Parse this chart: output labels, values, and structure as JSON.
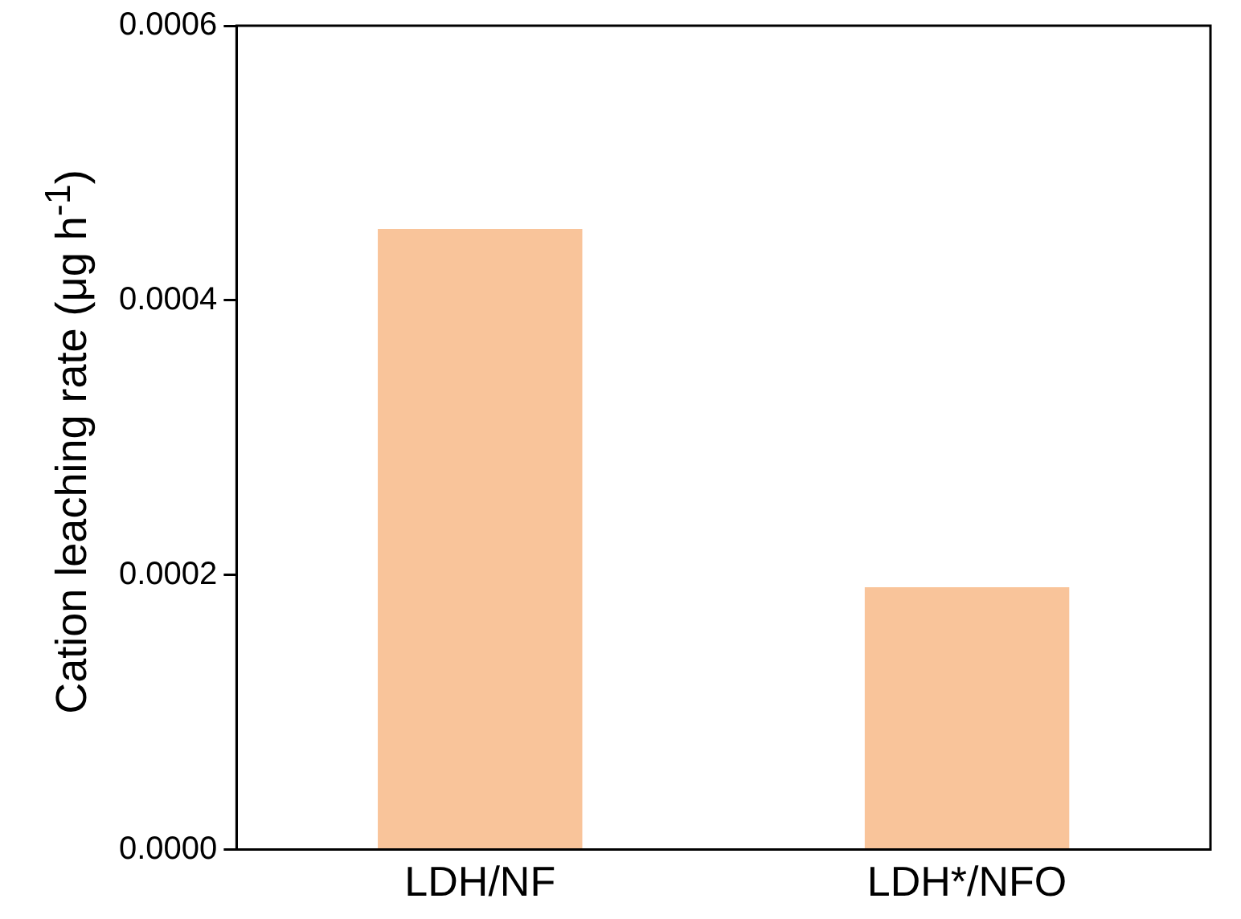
{
  "chart_data": {
    "type": "bar",
    "ylabel": "Cation leaching rate (μg h$^{-1}$)",
    "categories": [
      "LDH/NF",
      "LDH*/NFO"
    ],
    "values": [
      0.000452,
      0.000191
    ],
    "color": "#f9c49a",
    "ylim": [
      0,
      0.0006
    ],
    "yticks": [
      {
        "value": 0,
        "label": "0.0000"
      },
      {
        "value": 0.0002,
        "label": "0.0002"
      },
      {
        "value": 0.0004,
        "label": "0.0004"
      },
      {
        "value": 0.0006,
        "label": "0.0006"
      }
    ],
    "grid": false,
    "legend": false
  }
}
